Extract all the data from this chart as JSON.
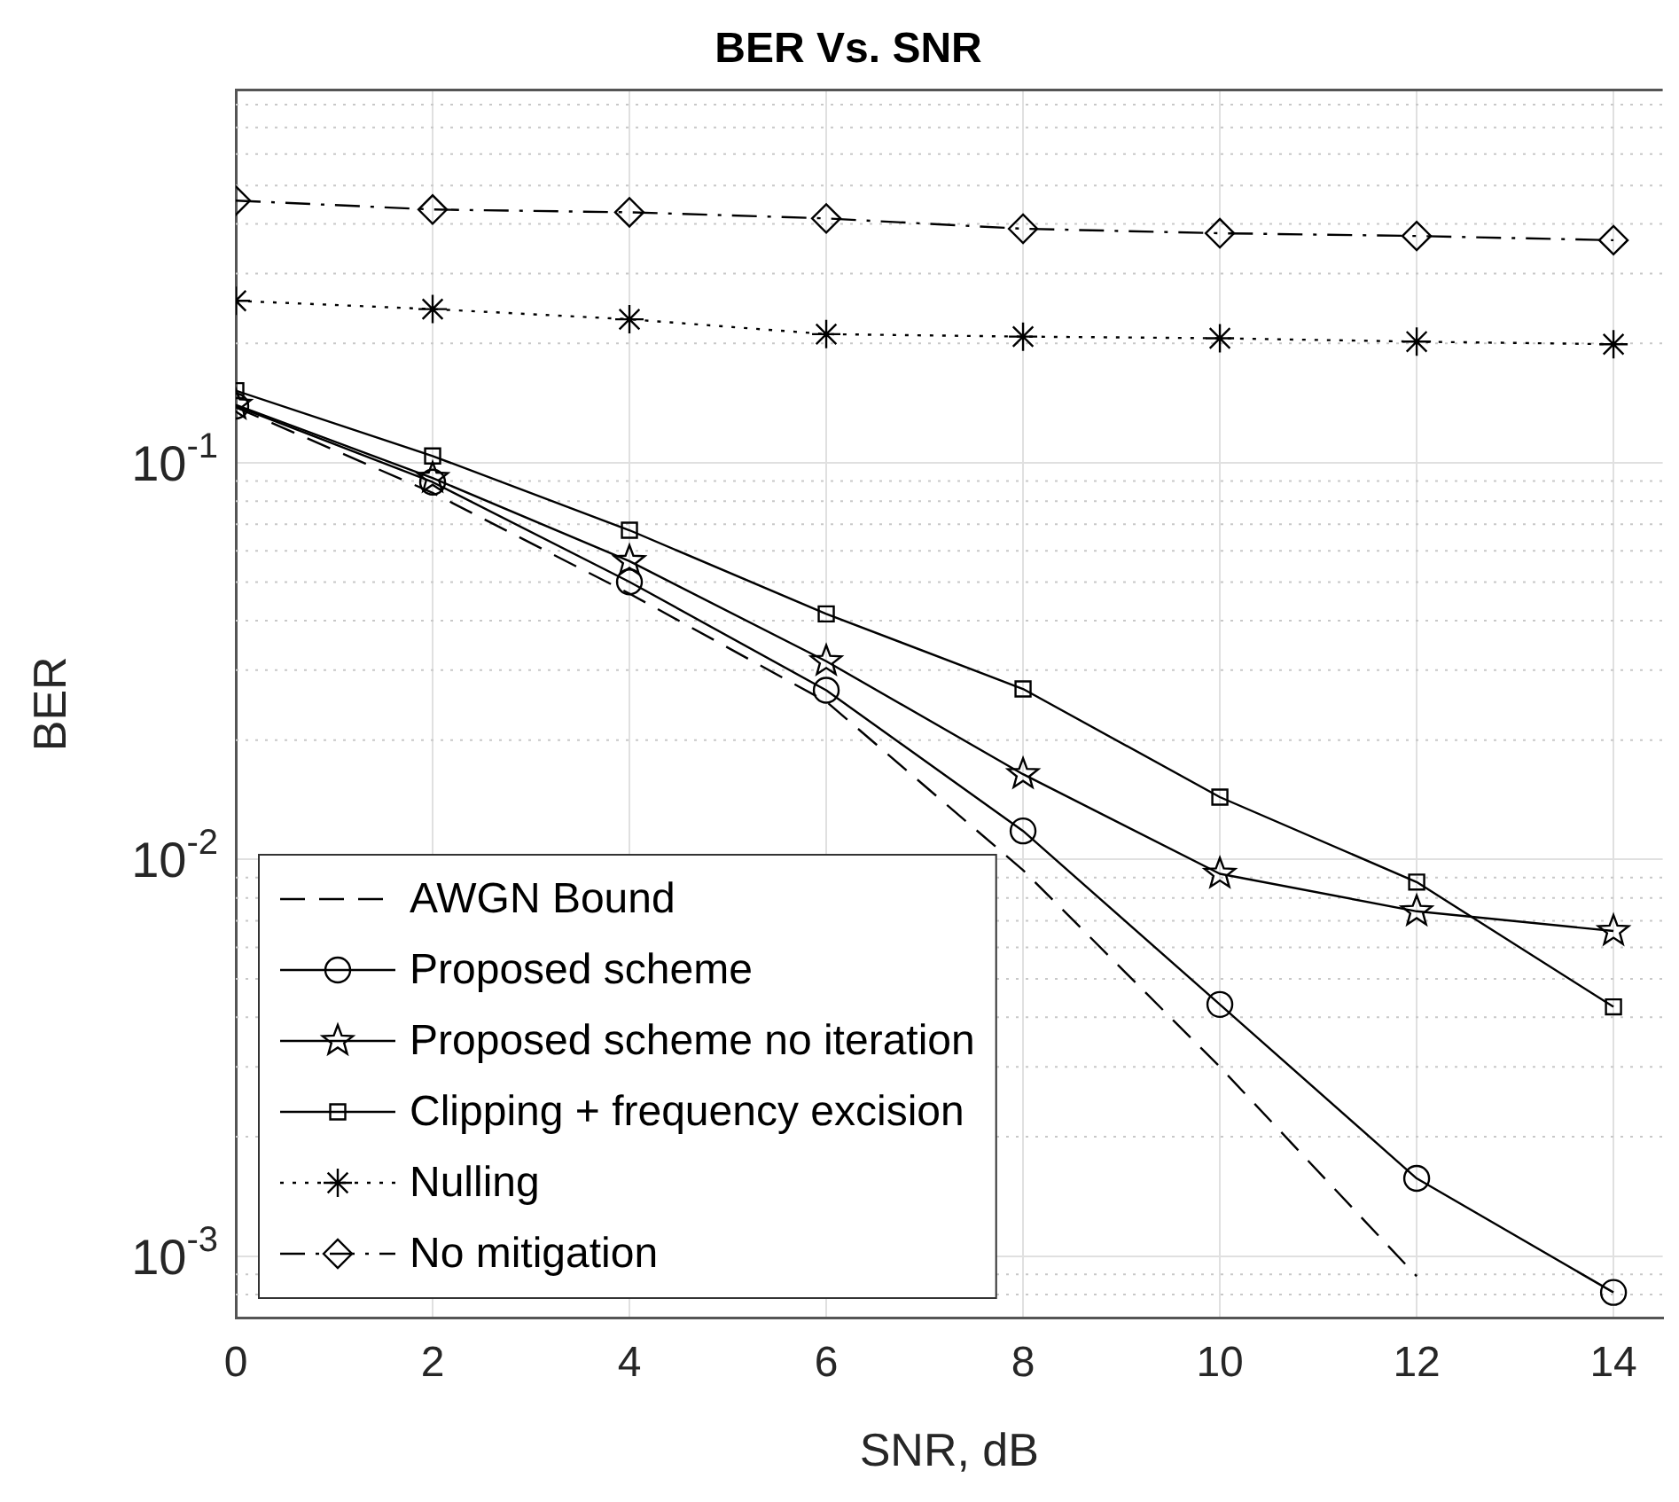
{
  "chart_data": {
    "type": "line",
    "title": "BER Vs. SNR",
    "xlabel": "SNR, dB",
    "ylabel": "BER",
    "x": [
      0,
      2,
      4,
      6,
      8,
      10,
      12,
      14
    ],
    "series": [
      {
        "name": "AWGN Bound",
        "color": "#000000",
        "line_style": "dashed",
        "marker": "none",
        "values": [
          0.138,
          0.084,
          0.0468,
          0.025,
          0.0094,
          0.003,
          0.00089,
          null
        ]
      },
      {
        "name": "Proposed scheme",
        "color": "#000000",
        "line_style": "solid",
        "marker": "circle",
        "values": [
          0.139,
          0.0894,
          0.0501,
          0.0267,
          0.0118,
          0.00431,
          0.00157,
          0.00081
        ]
      },
      {
        "name": "Proposed scheme no iteration",
        "color": "#000000",
        "line_style": "solid",
        "marker": "star",
        "values": [
          0.14,
          0.0915,
          0.0565,
          0.0316,
          0.0164,
          0.0092,
          0.0074,
          0.0066
        ]
      },
      {
        "name": "Clipping + frequency excision",
        "color": "#000000",
        "line_style": "solid",
        "marker": "square",
        "values": [
          0.152,
          0.104,
          0.0676,
          0.0416,
          0.0269,
          0.01436,
          0.00877,
          0.00425
        ]
      },
      {
        "name": "Nulling",
        "color": "#000000",
        "line_style": "dotted",
        "marker": "cross",
        "values": [
          0.256,
          0.244,
          0.23,
          0.211,
          0.208,
          0.206,
          0.202,
          0.199
        ]
      },
      {
        "name": "No mitigation",
        "color": "#000000",
        "line_style": "dashdot",
        "marker": "diamond",
        "values": [
          0.458,
          0.435,
          0.428,
          0.413,
          0.389,
          0.379,
          0.373,
          0.364
        ]
      }
    ],
    "log": "y",
    "xlim": [
      0,
      14.5
    ],
    "ylim": [
      0.0007,
      0.87
    ],
    "xticks": [
      0,
      2,
      4,
      6,
      8,
      10,
      12,
      14
    ],
    "yticks": [
      {
        "value": 0.001,
        "label": "10$^{-3}$"
      },
      {
        "value": 0.01,
        "label": "10$^{-2}$"
      },
      {
        "value": 0.1,
        "label": "10$^{-1}$"
      }
    ],
    "grid": true,
    "legend": "bottom left"
  }
}
